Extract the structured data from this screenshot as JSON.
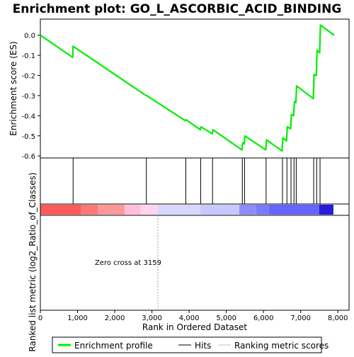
{
  "chart_data": {
    "type": "line",
    "title": "Enrichment plot: GO_L_ASCORBIC_ACID_BINDING",
    "ylabel_top": "Enrichment score (ES)",
    "ylabel_bottom": "Ranked list metric (log2_Ratio_of_Classes)",
    "xlabel": "Rank in Ordered Dataset",
    "xlim": [
      0,
      8300
    ],
    "ylim": [
      -0.61,
      0.08
    ],
    "x_ticks": [
      0,
      1000,
      2000,
      3000,
      4000,
      5000,
      6000,
      7000,
      8000
    ],
    "x_tick_labels": [
      "0",
      "1,000",
      "2,000",
      "3,000",
      "4,000",
      "5,000",
      "6,000",
      "7,000",
      "8,000"
    ],
    "y_ticks": [
      0.0,
      -0.1,
      -0.2,
      -0.3,
      -0.4,
      -0.5,
      -0.6
    ],
    "y_tick_labels": [
      "0.0",
      "-0.1",
      "-0.2",
      "-0.3",
      "-0.4",
      "-0.5",
      "-0.6"
    ],
    "series": [
      {
        "name": "Enrichment profile",
        "color": "#00ee00",
        "points": [
          [
            0,
            0.0
          ],
          [
            870,
            -0.11
          ],
          [
            880,
            -0.055
          ],
          [
            2840,
            -0.3
          ],
          [
            2860,
            -0.3
          ],
          [
            3900,
            -0.425
          ],
          [
            3920,
            -0.42
          ],
          [
            4300,
            -0.47
          ],
          [
            4320,
            -0.455
          ],
          [
            4620,
            -0.49
          ],
          [
            4640,
            -0.47
          ],
          [
            5420,
            -0.57
          ],
          [
            5440,
            -0.535
          ],
          [
            5480,
            -0.54
          ],
          [
            5500,
            -0.5
          ],
          [
            6060,
            -0.57
          ],
          [
            6080,
            -0.52
          ],
          [
            6500,
            -0.575
          ],
          [
            6520,
            -0.51
          ],
          [
            6620,
            -0.525
          ],
          [
            6640,
            -0.455
          ],
          [
            6730,
            -0.465
          ],
          [
            6750,
            -0.395
          ],
          [
            6810,
            -0.4
          ],
          [
            6830,
            -0.33
          ],
          [
            6870,
            -0.335
          ],
          [
            6890,
            -0.252
          ],
          [
            7340,
            -0.315
          ],
          [
            7360,
            -0.195
          ],
          [
            7420,
            -0.2
          ],
          [
            7440,
            -0.075
          ],
          [
            7510,
            -0.088
          ],
          [
            7530,
            0.05
          ],
          [
            7900,
            0.0
          ]
        ]
      }
    ],
    "hits": [
      880,
      2850,
      3910,
      4310,
      4630,
      5430,
      5490,
      6070,
      6510,
      6630,
      6740,
      6820,
      6880,
      7350,
      7430,
      7520
    ],
    "heatmap_segments": [
      {
        "from": 0,
        "to": 1100,
        "color": "#ff5a5a"
      },
      {
        "from": 1100,
        "to": 1550,
        "color": "#ff7878"
      },
      {
        "from": 1550,
        "to": 2270,
        "color": "#ff9898"
      },
      {
        "from": 2270,
        "to": 2700,
        "color": "#ffbfdc"
      },
      {
        "from": 2700,
        "to": 3159,
        "color": "#ffd4ec"
      },
      {
        "from": 3159,
        "to": 4300,
        "color": "#d8d8ff"
      },
      {
        "from": 4300,
        "to": 5350,
        "color": "#c8c8ff"
      },
      {
        "from": 5350,
        "to": 5800,
        "color": "#8c8cff"
      },
      {
        "from": 5800,
        "to": 6150,
        "color": "#7a7aff"
      },
      {
        "from": 6150,
        "to": 7500,
        "color": "#6464ff"
      },
      {
        "from": 7500,
        "to": 7880,
        "color": "#2a1ad9"
      }
    ],
    "zero_cross": 3159,
    "annotation": "Zero cross at 3159",
    "legend": {
      "position": "bottom",
      "entries": [
        {
          "label": "Enrichment profile",
          "color": "#00ee00"
        },
        {
          "label": "Hits",
          "color": "#000000"
        },
        {
          "label": "Ranking metric scores",
          "color": "#c0c0c0"
        }
      ]
    }
  }
}
